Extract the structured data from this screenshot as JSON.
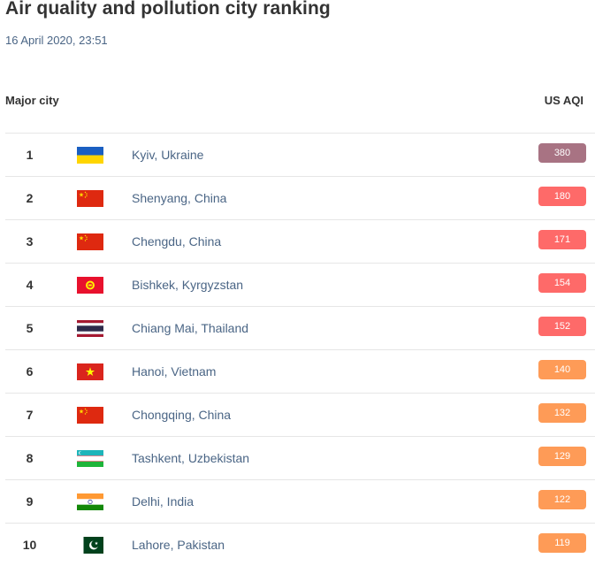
{
  "page": {
    "title": "Air quality and pollution city ranking",
    "timestamp": "16 April 2020, 23:51"
  },
  "table": {
    "col_city": "Major city",
    "col_aqi": "US AQI",
    "rows": [
      {
        "rank": "1",
        "city": "Kyiv, Ukraine",
        "aqi": "380",
        "flag": "ukraine-flag-icon",
        "color": "#a87383"
      },
      {
        "rank": "2",
        "city": "Shenyang, China",
        "aqi": "180",
        "flag": "china-flag-icon",
        "color": "#fe6a69"
      },
      {
        "rank": "3",
        "city": "Chengdu, China",
        "aqi": "171",
        "flag": "china-flag-icon",
        "color": "#fe6a69"
      },
      {
        "rank": "4",
        "city": "Bishkek, Kyrgyzstan",
        "aqi": "154",
        "flag": "kyrgyzstan-flag-icon",
        "color": "#fe6a69"
      },
      {
        "rank": "5",
        "city": "Chiang Mai, Thailand",
        "aqi": "152",
        "flag": "thailand-flag-icon",
        "color": "#fe6a69"
      },
      {
        "rank": "6",
        "city": "Hanoi, Vietnam",
        "aqi": "140",
        "flag": "vietnam-flag-icon",
        "color": "#fe9b57"
      },
      {
        "rank": "7",
        "city": "Chongqing, China",
        "aqi": "132",
        "flag": "china-flag-icon",
        "color": "#fe9b57"
      },
      {
        "rank": "8",
        "city": "Tashkent, Uzbekistan",
        "aqi": "129",
        "flag": "uzbekistan-flag-icon",
        "color": "#fe9b57"
      },
      {
        "rank": "9",
        "city": "Delhi, India",
        "aqi": "122",
        "flag": "india-flag-icon",
        "color": "#fe9b57"
      },
      {
        "rank": "10",
        "city": "Lahore, Pakistan",
        "aqi": "119",
        "flag": "pakistan-flag-icon",
        "color": "#fe9b57"
      }
    ]
  }
}
